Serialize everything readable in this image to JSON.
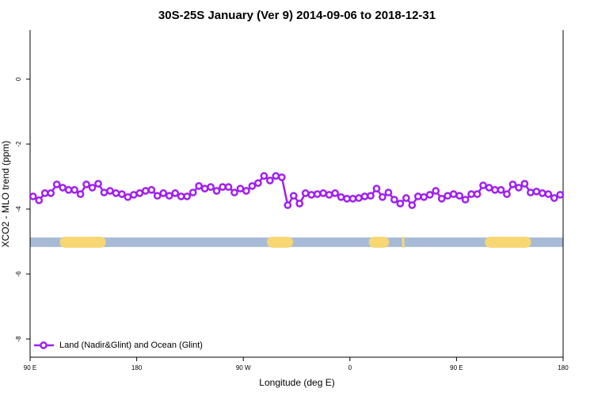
{
  "chart_data": {
    "type": "line",
    "title": "30S-25S January (Ver 9)   2014-09-06 to 2018-12-31",
    "x_label": "Longitude (deg E)",
    "y_label": "XCO2 - MLO trend (ppm)",
    "xlim": [
      90,
      540
    ],
    "ylim": [
      -8.56,
      1.51
    ],
    "xticks": [
      {
        "value": 90,
        "label": "90 E"
      },
      {
        "value": 180,
        "label": "180"
      },
      {
        "value": 270,
        "label": "90 W"
      },
      {
        "value": 360,
        "label": "0"
      },
      {
        "value": 450,
        "label": "90 E"
      },
      {
        "value": 540,
        "label": "180"
      }
    ],
    "yticks": [
      0,
      -2,
      -4,
      -6,
      -8
    ],
    "legend_position": "bottom-left",
    "band_y": -5.02,
    "band_color": "#a7bbd6",
    "land_color": "#f7d774",
    "land_bands": [
      [
        115,
        154
      ],
      [
        290,
        312
      ],
      [
        376,
        393
      ],
      [
        404,
        406
      ],
      [
        474,
        513
      ]
    ],
    "x": [
      92.5,
      97.5,
      102.5,
      107.5,
      112.5,
      117.5,
      122.5,
      127.5,
      132.5,
      137.5,
      142.5,
      147.5,
      152.5,
      157.5,
      162.5,
      167.5,
      172.5,
      177.5,
      182.5,
      187.5,
      192.5,
      197.5,
      202.5,
      207.5,
      212.5,
      217.5,
      222.5,
      227.5,
      232.5,
      237.5,
      242.5,
      247.5,
      252.5,
      257.5,
      262.5,
      267.5,
      272.5,
      277.5,
      282.5,
      287.5,
      292.5,
      297.5,
      302.5,
      307.5,
      312.5,
      317.5,
      322.5,
      327.5,
      332.5,
      337.5,
      342.5,
      347.5,
      352.5,
      357.5,
      362.5,
      367.5,
      372.5,
      377.5,
      382.5,
      387.5,
      392.5,
      397.5,
      402.5,
      407.5,
      412.5,
      417.5,
      422.5,
      427.5,
      432.5,
      437.5,
      442.5,
      447.5,
      452.5,
      457.5,
      462.5,
      467.5,
      472.5,
      477.5,
      482.5,
      487.5,
      492.5,
      497.5,
      502.5,
      507.5,
      512.5,
      517.5,
      522.5,
      527.5,
      532.5,
      537.5
    ],
    "series": [
      {
        "name": "Land (Nadir&Glint) and Ocean (Glint)",
        "color": "#a020f0",
        "values": [
          -3.61,
          -3.73,
          -3.51,
          -3.51,
          -3.24,
          -3.34,
          -3.41,
          -3.41,
          -3.54,
          -3.24,
          -3.34,
          -3.22,
          -3.49,
          -3.44,
          -3.51,
          -3.54,
          -3.63,
          -3.56,
          -3.51,
          -3.44,
          -3.41,
          -3.59,
          -3.51,
          -3.59,
          -3.51,
          -3.61,
          -3.61,
          -3.49,
          -3.29,
          -3.37,
          -3.32,
          -3.44,
          -3.32,
          -3.32,
          -3.49,
          -3.37,
          -3.44,
          -3.29,
          -3.2,
          -2.98,
          -3.12,
          -2.98,
          -3.02,
          -3.88,
          -3.59,
          -3.83,
          -3.51,
          -3.56,
          -3.54,
          -3.51,
          -3.56,
          -3.51,
          -3.63,
          -3.68,
          -3.68,
          -3.66,
          -3.61,
          -3.59,
          -3.37,
          -3.63,
          -3.49,
          -3.71,
          -3.83,
          -3.66,
          -3.88,
          -3.61,
          -3.63,
          -3.56,
          -3.44,
          -3.68,
          -3.59,
          -3.54,
          -3.59,
          -3.71,
          -3.54,
          -3.54,
          -3.27,
          -3.34,
          -3.41,
          -3.41,
          -3.54,
          -3.24,
          -3.34,
          -3.22,
          -3.49,
          -3.46,
          -3.51,
          -3.54,
          -3.66,
          -3.56
        ]
      }
    ]
  }
}
